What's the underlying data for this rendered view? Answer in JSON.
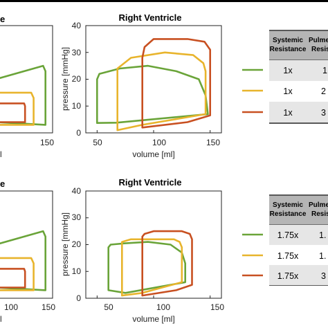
{
  "chart_data": [
    {
      "type": "line",
      "panel": "top-left (cropped)",
      "title": "e",
      "xlabel": "",
      "xlim": [
        0,
        160
      ],
      "ylim": [
        0,
        40
      ],
      "x_ticks": [
        "150"
      ],
      "y_ticks": [],
      "series": [
        {
          "values": [
            [
              40,
              20
            ],
            [
              40,
              20
            ],
            [
              140,
              25
            ],
            [
              145,
              23
            ],
            [
              145,
              3
            ],
            [
              40,
              4
            ]
          ]
        },
        {
          "values": [
            [
              40,
              15
            ],
            [
              40,
              15
            ],
            [
              115,
              15
            ],
            [
              120,
              13
            ],
            [
              120,
              3
            ],
            [
              40,
              3
            ]
          ]
        },
        {
          "values": [
            [
              40,
              11
            ],
            [
              40,
              11
            ],
            [
              100,
              11
            ],
            [
              102,
              10
            ],
            [
              102,
              4
            ],
            [
              40,
              4
            ]
          ]
        }
      ]
    },
    {
      "type": "line",
      "panel": "top-right",
      "title": "Right Ventricle",
      "xlabel": "volume [ml]",
      "ylabel": "pressure [mmHg]",
      "xlim": [
        40,
        160
      ],
      "ylim": [
        0,
        40
      ],
      "x_ticks": [
        "50",
        "100",
        "150"
      ],
      "y_ticks": [
        "0",
        "10",
        "20",
        "30",
        "40"
      ],
      "series": [
        {
          "values": [
            [
              50,
              20
            ],
            [
              50,
              3.7
            ],
            [
              67,
              3.8
            ],
            [
              148,
              7
            ],
            [
              146,
              14
            ],
            [
              140,
              20
            ],
            [
              120,
              23
            ],
            [
              95,
              25
            ],
            [
              70,
              24
            ],
            [
              52,
              22
            ]
          ]
        },
        {
          "values": [
            [
              68,
              24
            ],
            [
              68,
              1
            ],
            [
              90,
              3
            ],
            [
              146,
              7
            ],
            [
              146,
              13
            ],
            [
              146,
              23
            ],
            [
              144,
              26
            ],
            [
              135,
              29
            ],
            [
              110,
              30
            ],
            [
              80,
              28
            ]
          ]
        },
        {
          "values": [
            [
              90,
              28
            ],
            [
              90,
              2
            ],
            [
              130,
              4
            ],
            [
              150,
              6.5
            ],
            [
              150,
              24
            ],
            [
              150,
              31
            ],
            [
              145,
              34
            ],
            [
              130,
              35
            ],
            [
              100,
              35
            ],
            [
              92,
              32
            ]
          ]
        }
      ]
    },
    {
      "type": "line",
      "panel": "bottom-left (cropped)",
      "title": "e",
      "xlabel": "",
      "xlim": [
        0,
        160
      ],
      "ylim": [
        0,
        40
      ],
      "x_ticks": [
        "100",
        "150"
      ],
      "y_ticks": [],
      "series": [
        {
          "values": [
            [
              40,
              20
            ],
            [
              40,
              20
            ],
            [
              140,
              25
            ],
            [
              145,
              23
            ],
            [
              145,
              3
            ],
            [
              40,
              4
            ]
          ]
        },
        {
          "values": [
            [
              40,
              15
            ],
            [
              40,
              15
            ],
            [
              115,
              15
            ],
            [
              120,
              13
            ],
            [
              120,
              3
            ],
            [
              40,
              3
            ]
          ]
        },
        {
          "values": [
            [
              40,
              11
            ],
            [
              40,
              11
            ],
            [
              100,
              11
            ],
            [
              102,
              10
            ],
            [
              102,
              4
            ],
            [
              40,
              4
            ]
          ]
        }
      ]
    },
    {
      "type": "line",
      "panel": "bottom-right",
      "title": "Right Ventricle",
      "xlabel": "volume [ml]",
      "ylabel": "pressure [mmHg]",
      "xlim": [
        40,
        160
      ],
      "ylim": [
        0,
        40
      ],
      "x_ticks": [
        "50",
        "100",
        "150"
      ],
      "y_ticks": [
        "0",
        "10",
        "20",
        "30",
        "40"
      ],
      "series": [
        {
          "values": [
            [
              60,
              19
            ],
            [
              60,
              3
            ],
            [
              75,
              2
            ],
            [
              128,
              6
            ],
            [
              128,
              13
            ],
            [
              125,
              17
            ],
            [
              115,
              20
            ],
            [
              95,
              21
            ],
            [
              75,
              20.5
            ],
            [
              62,
              20
            ]
          ]
        },
        {
          "values": [
            [
              72,
              21
            ],
            [
              72,
              1
            ],
            [
              90,
              2
            ],
            [
              125,
              6
            ],
            [
              125,
              13
            ],
            [
              125,
              19
            ],
            [
              123,
              21
            ],
            [
              118,
              22
            ],
            [
              100,
              22
            ],
            [
              80,
              22
            ]
          ]
        },
        {
          "values": [
            [
              90,
              23
            ],
            [
              90,
              1
            ],
            [
              120,
              3
            ],
            [
              134,
              5
            ],
            [
              134,
              12
            ],
            [
              134,
              22
            ],
            [
              132,
              24
            ],
            [
              125,
              25
            ],
            [
              100,
              25
            ],
            [
              92,
              24
            ]
          ]
        }
      ]
    }
  ],
  "colors": {
    "green": "#6aa439",
    "yellow": "#e8b42c",
    "red": "#c85021",
    "table_header": "#b5b5b5",
    "table_shade": "#e6e6e6",
    "rule": "#222222"
  },
  "legend_rows": {
    "top": [
      {
        "series_color": "green",
        "systemic": "1x",
        "pulmonary": "1"
      },
      {
        "series_color": "yellow",
        "systemic": "1x",
        "pulmonary": "2"
      },
      {
        "series_color": "red",
        "systemic": "1x",
        "pulmonary": "3"
      }
    ],
    "bottom": [
      {
        "series_color": "green",
        "systemic": "1.75x",
        "pulmonary": "1."
      },
      {
        "series_color": "yellow",
        "systemic": "1.75x",
        "pulmonary": "1."
      },
      {
        "series_color": "red",
        "systemic": "1.75x",
        "pulmonary": "3"
      }
    ]
  },
  "tables": {
    "header_systemic_line1": "Systemic",
    "header_systemic_line2": "Resistance",
    "header_pulmonary_line1": "Pulme",
    "header_pulmonary_line2": "Resista"
  }
}
